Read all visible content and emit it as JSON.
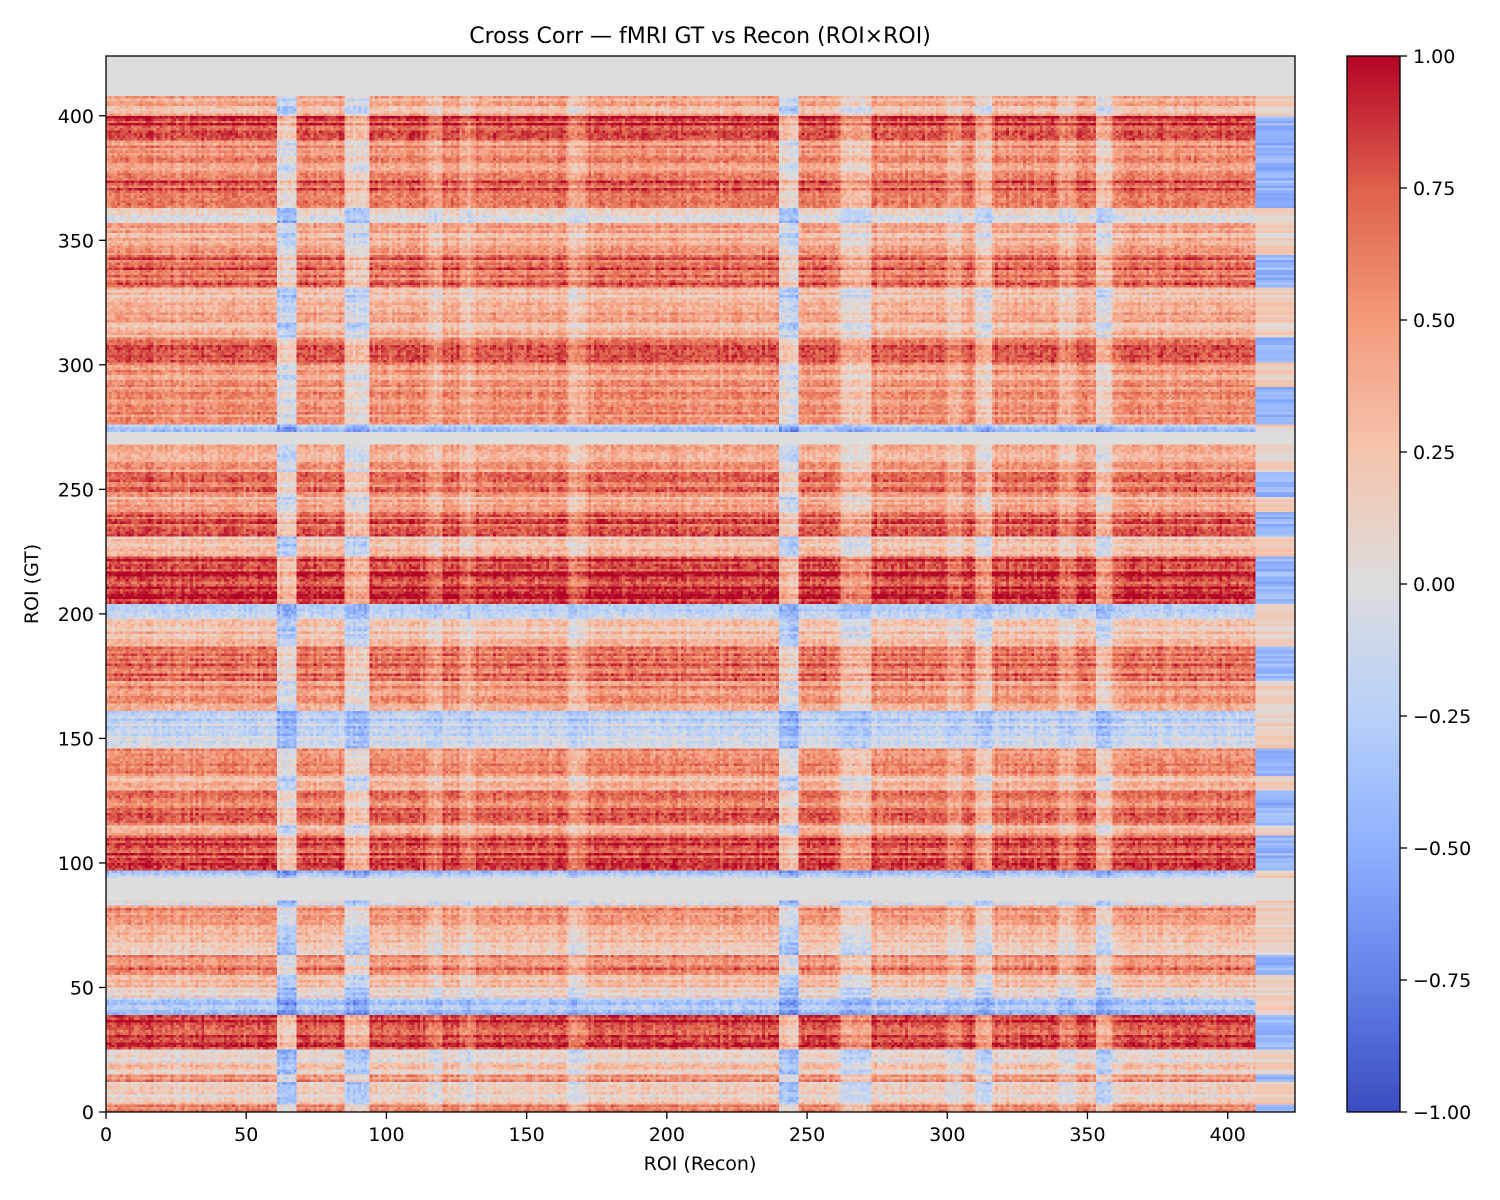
{
  "chart_data": {
    "type": "heatmap",
    "title": "Cross Corr — fMRI GT vs Recon (ROI×ROI)",
    "xlabel": "ROI (Recon)",
    "ylabel": "ROI (GT)",
    "n_rows": 424,
    "n_cols": 424,
    "xlim": [
      0,
      424
    ],
    "ylim": [
      0,
      424
    ],
    "origin": "lower",
    "xticks": [
      0,
      50,
      100,
      150,
      200,
      250,
      300,
      350,
      400
    ],
    "yticks": [
      0,
      50,
      100,
      150,
      200,
      250,
      300,
      350,
      400
    ],
    "xtick_labels": [
      "0",
      "50",
      "100",
      "150",
      "200",
      "250",
      "300",
      "350",
      "400"
    ],
    "ytick_labels": [
      "0",
      "50",
      "100",
      "150",
      "200",
      "250",
      "300",
      "350",
      "400"
    ],
    "colormap": "coolwarm",
    "color_range": [
      -1.0,
      1.0
    ],
    "colorbar_ticks": [
      1.0,
      0.75,
      0.5,
      0.25,
      0.0,
      -0.25,
      -0.5,
      -0.75,
      -1.0
    ],
    "colorbar_tick_labels": [
      "1.00",
      "0.75",
      "0.50",
      "0.25",
      "0.00",
      "−0.25",
      "−0.50",
      "−0.75",
      "−1.00"
    ],
    "colorbar_position": "right",
    "zero_rows_gt": [
      [
        85,
        93
      ],
      [
        268,
        272
      ],
      [
        408,
        423
      ]
    ],
    "zero_cols_recon": [
      [
        410,
        423
      ]
    ],
    "row_bands_gt": [
      {
        "rows": [
          0,
          2
        ],
        "r": 0.6
      },
      {
        "rows": [
          3,
          11
        ],
        "r": 0.1
      },
      {
        "rows": [
          12,
          14
        ],
        "r": 0.55
      },
      {
        "rows": [
          15,
          18
        ],
        "r": 0.2
      },
      {
        "rows": [
          19,
          24
        ],
        "r": 0.1
      },
      {
        "rows": [
          25,
          38
        ],
        "r": 0.8
      },
      {
        "rows": [
          39,
          45
        ],
        "r": -0.35
      },
      {
        "rows": [
          46,
          49
        ],
        "r": 0.15
      },
      {
        "rows": [
          50,
          54
        ],
        "r": 0.3
      },
      {
        "rows": [
          55,
          62
        ],
        "r": 0.6
      },
      {
        "rows": [
          63,
          73
        ],
        "r": 0.25
      },
      {
        "rows": [
          74,
          82
        ],
        "r": 0.5
      },
      {
        "rows": [
          83,
          84
        ],
        "r": -0.1
      },
      {
        "rows": [
          94,
          96
        ],
        "r": -0.3
      },
      {
        "rows": [
          97,
          110
        ],
        "r": 0.8
      },
      {
        "rows": [
          111,
          114
        ],
        "r": 0.4
      },
      {
        "rows": [
          115,
          128
        ],
        "r": 0.65
      },
      {
        "rows": [
          129,
          134
        ],
        "r": 0.3
      },
      {
        "rows": [
          135,
          145
        ],
        "r": 0.6
      },
      {
        "rows": [
          146,
          160
        ],
        "r": -0.15
      },
      {
        "rows": [
          161,
          172
        ],
        "r": 0.5
      },
      {
        "rows": [
          173,
          186
        ],
        "r": 0.65
      },
      {
        "rows": [
          187,
          197
        ],
        "r": 0.3
      },
      {
        "rows": [
          198,
          203
        ],
        "r": -0.2
      },
      {
        "rows": [
          204,
          222
        ],
        "r": 0.85
      },
      {
        "rows": [
          223,
          230
        ],
        "r": 0.2
      },
      {
        "rows": [
          231,
          240
        ],
        "r": 0.75
      },
      {
        "rows": [
          241,
          246
        ],
        "r": 0.35
      },
      {
        "rows": [
          247,
          256
        ],
        "r": 0.65
      },
      {
        "rows": [
          257,
          267
        ],
        "r": 0.45
      },
      {
        "rows": [
          273,
          275
        ],
        "r": -0.25
      },
      {
        "rows": [
          276,
          290
        ],
        "r": 0.55
      },
      {
        "rows": [
          291,
          300
        ],
        "r": 0.45
      },
      {
        "rows": [
          301,
          310
        ],
        "r": 0.75
      },
      {
        "rows": [
          311,
          320
        ],
        "r": 0.35
      },
      {
        "rows": [
          321,
          330
        ],
        "r": 0.25
      },
      {
        "rows": [
          331,
          343
        ],
        "r": 0.7
      },
      {
        "rows": [
          344,
          356
        ],
        "r": 0.4
      },
      {
        "rows": [
          357,
          362
        ],
        "r": 0.1
      },
      {
        "rows": [
          363,
          374
        ],
        "r": 0.75
      },
      {
        "rows": [
          375,
          389
        ],
        "r": 0.55
      },
      {
        "rows": [
          390,
          399
        ],
        "r": 0.85
      },
      {
        "rows": [
          400,
          407
        ],
        "r": 0.35
      }
    ],
    "col_bands_recon": [
      {
        "cols": [
          61,
          67
        ],
        "r": -0.45
      },
      {
        "cols": [
          85,
          93
        ],
        "r": -0.4
      },
      {
        "cols": [
          115,
          119
        ],
        "r": -0.15
      },
      {
        "cols": [
          126,
          131
        ],
        "r": -0.15
      },
      {
        "cols": [
          165,
          170
        ],
        "r": -0.2
      },
      {
        "cols": [
          240,
          246
        ],
        "r": -0.45
      },
      {
        "cols": [
          262,
          272
        ],
        "r": -0.3
      },
      {
        "cols": [
          300,
          304
        ],
        "r": -0.15
      },
      {
        "cols": [
          310,
          315
        ],
        "r": -0.3
      },
      {
        "cols": [
          340,
          345
        ],
        "r": -0.15
      },
      {
        "cols": [
          353,
          358
        ],
        "r": -0.3
      }
    ]
  }
}
